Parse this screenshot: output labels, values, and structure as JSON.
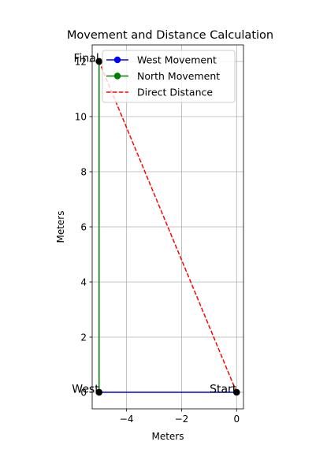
{
  "chart_data": {
    "type": "line",
    "title": "Movement and Distance Calculation",
    "xlabel": "Meters",
    "ylabel": "Meters",
    "xlim": [
      -5.25,
      0.25
    ],
    "ylim": [
      -0.6,
      12.6
    ],
    "xticks": [
      {
        "value": -4,
        "label": "−4"
      },
      {
        "value": -2,
        "label": "−2"
      },
      {
        "value": 0,
        "label": "0"
      }
    ],
    "yticks": [
      {
        "value": 0,
        "label": "0"
      },
      {
        "value": 2,
        "label": "2"
      },
      {
        "value": 4,
        "label": "4"
      },
      {
        "value": 6,
        "label": "6"
      },
      {
        "value": 8,
        "label": "8"
      },
      {
        "value": 10,
        "label": "10"
      },
      {
        "value": 12,
        "label": "12"
      }
    ],
    "grid": true,
    "legend_position": "top-right",
    "series": [
      {
        "name": "West Movement",
        "color": "#0000ff",
        "style": "solid",
        "marker": "circle",
        "points": [
          [
            0,
            0
          ],
          [
            -5,
            0
          ]
        ]
      },
      {
        "name": "North Movement",
        "color": "#008000",
        "style": "solid",
        "marker": "circle",
        "points": [
          [
            -5,
            0
          ],
          [
            -5,
            12
          ]
        ]
      },
      {
        "name": "Direct Distance",
        "color": "#ff0000",
        "style": "dashed",
        "marker": "none",
        "points": [
          [
            0,
            0
          ],
          [
            -5,
            12
          ]
        ]
      }
    ],
    "points": [
      {
        "label": "Start",
        "x": 0,
        "y": 0,
        "anchor": "end"
      },
      {
        "label": "West",
        "x": -5,
        "y": 0,
        "anchor": "end"
      },
      {
        "label": "Final",
        "x": -5,
        "y": 12,
        "anchor": "end"
      }
    ],
    "point_color": "#000000"
  }
}
